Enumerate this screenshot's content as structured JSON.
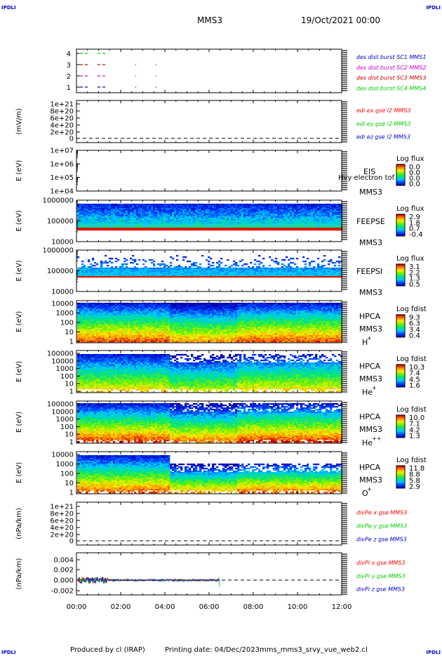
{
  "corners": {
    "tl": "IPDLI",
    "tr": "IPDLI",
    "bl": "IPDLI",
    "br": "IPDLI"
  },
  "header": {
    "title": "MMS3",
    "date": "19/Oct/2021 00:00"
  },
  "footer": {
    "produced": "Produced by cl (IRAP)",
    "printing": "Printing date: 04/Dec/2023",
    "file": "mms_mms3_srvy_vue_web2.cl"
  },
  "colors": {
    "red": "#ff0000",
    "green": "#00cc00",
    "blue": "#0000cc",
    "magenta": "#cc00cc"
  },
  "chart_data": [
    {
      "type": "scatter",
      "panel": "burst",
      "yticks": [
        "4",
        "3",
        "2",
        "1"
      ],
      "legend": [
        {
          "label": "des dist burst SC1 MMS1",
          "color": "#0000cc"
        },
        {
          "label": "des dist burst SC2 MMS2",
          "color": "#cc00cc"
        },
        {
          "label": "des dist burst SC3 MMS3",
          "color": "#cc0000"
        },
        {
          "label": "des dist burst SC4 MMS4",
          "color": "#00cc00"
        }
      ]
    },
    {
      "type": "line",
      "panel": "edi",
      "ylabel": "(mV/m)",
      "yticks": [
        "1e+21",
        "8e+20",
        "6e+20",
        "4e+20",
        "2e+20",
        "0"
      ],
      "legend": [
        {
          "label": "edi ex gse l2 MMS3",
          "color": "#ff0000"
        },
        {
          "label": "edi ey gse l2 MMS3",
          "color": "#00cc00"
        },
        {
          "label": "edi ez gse l2 MMS3",
          "color": "#0000cc"
        }
      ]
    },
    {
      "type": "heatmap",
      "panel": "eis",
      "ylabel": "E (eV)",
      "yticks": [
        "1e+07",
        "1e+06",
        "1e+05",
        "1e+04"
      ],
      "labels": [
        "EIS",
        "MMS3"
      ],
      "overlay": "Hvy electron tof",
      "cbar_title": "Log flux",
      "cbar_ticks": [
        "0.0",
        "0.0",
        "0.0",
        "0.0"
      ]
    },
    {
      "type": "heatmap",
      "panel": "feepse",
      "ylabel": "E (eV)",
      "yticks": [
        "1000000",
        "100000",
        "10000"
      ],
      "labels": [
        "FEEPSE",
        "MMS3"
      ],
      "cbar_title": "Log flux",
      "cbar_ticks": [
        "2.9",
        "1.8",
        "0.7",
        "-0.4"
      ]
    },
    {
      "type": "heatmap",
      "panel": "feepsi",
      "ylabel": "E (eV)",
      "yticks": [
        "1000000",
        "100000",
        "10000"
      ],
      "labels": [
        "FEEPSI",
        "MMS3"
      ],
      "cbar_title": "Log flux",
      "cbar_ticks": [
        "3.1",
        "2.2",
        "1.3",
        "0.5"
      ]
    },
    {
      "type": "heatmap",
      "panel": "hpca_h",
      "ylabel": "E (eV)",
      "yticks": [
        "10000",
        "1000",
        "100",
        "10",
        "1"
      ],
      "labels": [
        "HPCA",
        "MMS3",
        "H",
        "+"
      ],
      "cbar_title": "Log fdist",
      "cbar_ticks": [
        "9.3",
        "6.3",
        "3.4",
        "0.4"
      ]
    },
    {
      "type": "heatmap",
      "panel": "hpca_he",
      "ylabel": "E (eV)",
      "yticks": [
        "100000",
        "10000",
        "1000",
        "100",
        "10",
        "1"
      ],
      "labels": [
        "HPCA",
        "MMS3",
        "He",
        "+"
      ],
      "cbar_title": "Log fdist",
      "cbar_ticks": [
        "10.3",
        "7.4",
        "4.5",
        "1.6"
      ]
    },
    {
      "type": "heatmap",
      "panel": "hpca_hepp",
      "ylabel": "E (eV)",
      "yticks": [
        "100000",
        "10000",
        "1000",
        "100",
        "10",
        "1"
      ],
      "labels": [
        "HPCA",
        "MMS3",
        "He",
        "++"
      ],
      "cbar_title": "Log fdist",
      "cbar_ticks": [
        "10.0",
        "7.1",
        "4.2",
        "1.3"
      ]
    },
    {
      "type": "heatmap",
      "panel": "hpca_o",
      "ylabel": "E (eV)",
      "yticks": [
        "10000",
        "1000",
        "100",
        "10",
        "1"
      ],
      "labels": [
        "HPCA",
        "MMS3",
        "O",
        "+"
      ],
      "cbar_title": "Log fdist",
      "cbar_ticks": [
        "11.8",
        "8.8",
        "5.8",
        "2.9"
      ]
    },
    {
      "type": "line",
      "panel": "divpe",
      "ylabel": "(nPa/km)",
      "yticks": [
        "1e+21",
        "8e+20",
        "6e+20",
        "4e+20",
        "2e+20",
        "0"
      ],
      "legend": [
        {
          "label": "divPe x gse MMS3",
          "color": "#ff0000"
        },
        {
          "label": "divPe y gse MMS3",
          "color": "#00cc00"
        },
        {
          "label": "divPe z gse MMS3",
          "color": "#0000cc"
        }
      ]
    },
    {
      "type": "line",
      "panel": "divpi",
      "ylabel": "(nPa/km)",
      "yticks": [
        "0.004",
        "0.002",
        "0.000",
        "-0.002"
      ],
      "legend": [
        {
          "label": "divPi x gse MMS3",
          "color": "#ff0000"
        },
        {
          "label": "divPi y gse MMS3",
          "color": "#00cc00"
        },
        {
          "label": "divPi z gse MMS3",
          "color": "#0000cc"
        }
      ]
    }
  ],
  "xaxis": {
    "ticks": [
      "00:00",
      "02:00",
      "04:00",
      "06:00",
      "08:00",
      "10:00",
      "12:00"
    ]
  }
}
